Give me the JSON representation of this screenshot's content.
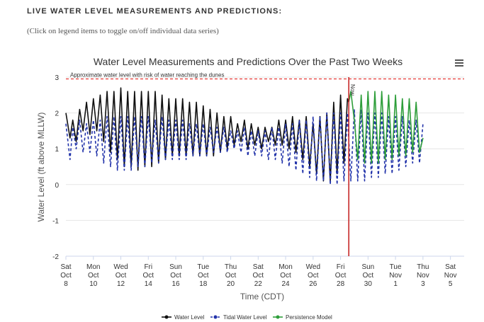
{
  "header": {
    "title": "LIVE WATER LEVEL MEASUREMENTS AND PREDICTIONS:",
    "subtitle": "(Click on legend items to toggle on/off individual data series)"
  },
  "menu_icon": "hamburger-menu-icon",
  "chart_data": {
    "type": "line",
    "title": "Water Level Measurements and Predictions Over the Past Two Weeks",
    "xlabel": "Time (CDT)",
    "ylabel": "Water Level (ft above MLLW)",
    "ylim": [
      -2,
      3
    ],
    "xlim": [
      0,
      29
    ],
    "yticks": [
      3,
      2,
      1,
      0,
      -1,
      -2
    ],
    "xticks": [
      {
        "x": 0,
        "day": "Sat",
        "date": "Oct",
        "num": "8"
      },
      {
        "x": 2,
        "day": "Mon",
        "date": "Oct",
        "num": "10"
      },
      {
        "x": 4,
        "day": "Wed",
        "date": "Oct",
        "num": "12"
      },
      {
        "x": 6,
        "day": "Fri",
        "date": "Oct",
        "num": "14"
      },
      {
        "x": 8,
        "day": "Sun",
        "date": "Oct",
        "num": "16"
      },
      {
        "x": 10,
        "day": "Tue",
        "date": "Oct",
        "num": "18"
      },
      {
        "x": 12,
        "day": "Thu",
        "date": "Oct",
        "num": "20"
      },
      {
        "x": 14,
        "day": "Sat",
        "date": "Oct",
        "num": "22"
      },
      {
        "x": 16,
        "day": "Mon",
        "date": "Oct",
        "num": "24"
      },
      {
        "x": 18,
        "day": "Wed",
        "date": "Oct",
        "num": "26"
      },
      {
        "x": 20,
        "day": "Fri",
        "date": "Oct",
        "num": "28"
      },
      {
        "x": 22,
        "day": "Sun",
        "date": "Oct",
        "num": "30"
      },
      {
        "x": 24,
        "day": "Tue",
        "date": "Nov",
        "num": "1"
      },
      {
        "x": 26,
        "day": "Thu",
        "date": "Nov",
        "num": "3"
      },
      {
        "x": 28,
        "day": "Sat",
        "date": "Nov",
        "num": "5"
      }
    ],
    "threshold": {
      "value": 2.95,
      "label": "Approximate water level with risk of water reaching the dunes",
      "color": "#e53935"
    },
    "now": {
      "x": 20.6,
      "label": "Now",
      "color": "#c62828"
    },
    "grid": true,
    "legend_position": "bottom-center",
    "series": [
      {
        "name": "Water Level",
        "color": "#111111",
        "dash": "none",
        "points": [
          [
            0.0,
            2.0
          ],
          [
            0.3,
            1.3
          ],
          [
            0.5,
            1.8
          ],
          [
            0.75,
            1.2
          ],
          [
            1.0,
            2.1
          ],
          [
            1.25,
            1.5
          ],
          [
            1.5,
            2.3
          ],
          [
            1.75,
            1.4
          ],
          [
            2.0,
            2.4
          ],
          [
            2.25,
            1.5
          ],
          [
            2.5,
            2.5
          ],
          [
            2.75,
            1.2
          ],
          [
            3.0,
            2.6
          ],
          [
            3.25,
            0.9
          ],
          [
            3.5,
            2.6
          ],
          [
            3.75,
            0.7
          ],
          [
            4.0,
            2.7
          ],
          [
            4.25,
            0.5
          ],
          [
            4.5,
            2.6
          ],
          [
            4.75,
            0.5
          ],
          [
            5.0,
            2.6
          ],
          [
            5.25,
            0.4
          ],
          [
            5.5,
            2.6
          ],
          [
            5.75,
            0.5
          ],
          [
            6.0,
            2.6
          ],
          [
            6.25,
            0.5
          ],
          [
            6.5,
            2.6
          ],
          [
            6.75,
            0.6
          ],
          [
            7.0,
            2.5
          ],
          [
            7.25,
            0.7
          ],
          [
            7.5,
            2.4
          ],
          [
            7.75,
            0.8
          ],
          [
            8.0,
            2.4
          ],
          [
            8.25,
            0.8
          ],
          [
            8.5,
            2.4
          ],
          [
            8.75,
            0.8
          ],
          [
            9.0,
            2.3
          ],
          [
            9.25,
            0.8
          ],
          [
            9.5,
            2.3
          ],
          [
            9.75,
            0.8
          ],
          [
            10.0,
            2.2
          ],
          [
            10.25,
            0.8
          ],
          [
            10.5,
            2.1
          ],
          [
            10.75,
            0.8
          ],
          [
            11.0,
            2.0
          ],
          [
            11.25,
            0.9
          ],
          [
            11.5,
            1.9
          ],
          [
            11.75,
            1.0
          ],
          [
            12.0,
            1.9
          ],
          [
            12.25,
            1.1
          ],
          [
            12.5,
            1.7
          ],
          [
            12.75,
            1.2
          ],
          [
            13.0,
            1.8
          ],
          [
            13.25,
            1.0
          ],
          [
            13.5,
            1.7
          ],
          [
            13.75,
            1.1
          ],
          [
            14.0,
            1.6
          ],
          [
            14.25,
            1.0
          ],
          [
            14.5,
            1.6
          ],
          [
            14.75,
            1.2
          ],
          [
            15.0,
            1.6
          ],
          [
            15.25,
            1.1
          ],
          [
            15.5,
            1.8
          ],
          [
            15.75,
            1.1
          ],
          [
            16.0,
            1.8
          ],
          [
            16.25,
            1.0
          ],
          [
            16.5,
            1.9
          ],
          [
            16.75,
            0.9
          ],
          [
            17.0,
            1.8
          ],
          [
            17.25,
            0.7
          ],
          [
            17.5,
            1.9
          ],
          [
            17.75,
            0.5
          ],
          [
            18.0,
            1.7
          ],
          [
            18.25,
            0.3
          ],
          [
            18.5,
            1.9
          ],
          [
            18.75,
            0.1
          ],
          [
            19.0,
            2.0
          ],
          [
            19.25,
            0.1
          ],
          [
            19.5,
            2.3
          ],
          [
            19.75,
            0.3
          ],
          [
            20.0,
            2.5
          ],
          [
            20.25,
            0.6
          ],
          [
            20.5,
            2.4
          ],
          [
            20.6,
            2.3
          ]
        ]
      },
      {
        "name": "Tidal Water Level",
        "color": "#2233aa",
        "dash": "4,3",
        "points": [
          [
            0.0,
            1.7
          ],
          [
            0.3,
            0.7
          ],
          [
            0.5,
            1.6
          ],
          [
            0.75,
            1.0
          ],
          [
            1.0,
            1.8
          ],
          [
            1.25,
            0.9
          ],
          [
            1.5,
            1.7
          ],
          [
            1.75,
            0.9
          ],
          [
            2.0,
            1.8
          ],
          [
            2.25,
            0.8
          ],
          [
            2.5,
            1.8
          ],
          [
            2.75,
            0.6
          ],
          [
            3.0,
            1.9
          ],
          [
            3.25,
            0.5
          ],
          [
            3.5,
            1.9
          ],
          [
            3.75,
            0.4
          ],
          [
            4.0,
            1.9
          ],
          [
            4.25,
            0.4
          ],
          [
            4.5,
            1.9
          ],
          [
            4.75,
            0.4
          ],
          [
            5.0,
            1.9
          ],
          [
            5.25,
            0.5
          ],
          [
            5.5,
            1.9
          ],
          [
            5.75,
            0.5
          ],
          [
            6.0,
            1.9
          ],
          [
            6.25,
            0.6
          ],
          [
            6.5,
            1.8
          ],
          [
            6.75,
            0.6
          ],
          [
            7.0,
            1.9
          ],
          [
            7.25,
            0.7
          ],
          [
            7.5,
            1.8
          ],
          [
            7.75,
            0.7
          ],
          [
            8.0,
            1.8
          ],
          [
            8.25,
            0.7
          ],
          [
            8.5,
            1.8
          ],
          [
            8.75,
            0.7
          ],
          [
            9.0,
            1.7
          ],
          [
            9.25,
            0.8
          ],
          [
            9.5,
            1.7
          ],
          [
            9.75,
            0.8
          ],
          [
            10.0,
            1.7
          ],
          [
            10.25,
            0.8
          ],
          [
            10.5,
            1.6
          ],
          [
            10.75,
            0.9
          ],
          [
            11.0,
            1.6
          ],
          [
            11.25,
            0.9
          ],
          [
            11.5,
            1.6
          ],
          [
            11.75,
            0.9
          ],
          [
            12.0,
            1.5
          ],
          [
            12.25,
            1.0
          ],
          [
            12.5,
            1.5
          ],
          [
            12.75,
            0.9
          ],
          [
            13.0,
            1.6
          ],
          [
            13.25,
            0.8
          ],
          [
            13.5,
            1.5
          ],
          [
            13.75,
            0.8
          ],
          [
            14.0,
            1.5
          ],
          [
            14.25,
            0.8
          ],
          [
            14.5,
            1.5
          ],
          [
            14.75,
            0.7
          ],
          [
            15.0,
            1.6
          ],
          [
            15.25,
            0.7
          ],
          [
            15.5,
            1.6
          ],
          [
            15.75,
            0.6
          ],
          [
            16.0,
            1.7
          ],
          [
            16.25,
            0.5
          ],
          [
            16.5,
            1.7
          ],
          [
            16.75,
            0.4
          ],
          [
            17.0,
            1.8
          ],
          [
            17.25,
            0.3
          ],
          [
            17.5,
            1.8
          ],
          [
            17.75,
            0.2
          ],
          [
            18.0,
            1.9
          ],
          [
            18.25,
            0.1
          ],
          [
            18.5,
            1.9
          ],
          [
            18.75,
            0.1
          ],
          [
            19.0,
            2.0
          ],
          [
            19.25,
            0.0
          ],
          [
            19.5,
            2.0
          ],
          [
            19.75,
            0.0
          ],
          [
            20.0,
            2.0
          ],
          [
            20.25,
            0.1
          ],
          [
            20.5,
            2.0
          ],
          [
            20.75,
            0.1
          ],
          [
            21.0,
            2.1
          ],
          [
            21.25,
            0.1
          ],
          [
            21.5,
            2.1
          ],
          [
            21.75,
            0.1
          ],
          [
            22.0,
            2.0
          ],
          [
            22.25,
            0.2
          ],
          [
            22.5,
            2.0
          ],
          [
            22.75,
            0.2
          ],
          [
            23.0,
            2.0
          ],
          [
            23.25,
            0.3
          ],
          [
            23.5,
            1.9
          ],
          [
            23.75,
            0.3
          ],
          [
            24.0,
            1.9
          ],
          [
            24.25,
            0.4
          ],
          [
            24.5,
            1.9
          ],
          [
            24.75,
            0.5
          ],
          [
            25.0,
            1.8
          ],
          [
            25.25,
            0.6
          ],
          [
            25.5,
            1.8
          ],
          [
            25.75,
            0.6
          ],
          [
            26.0,
            1.7
          ]
        ]
      },
      {
        "name": "Persistence Model",
        "color": "#2e9e3a",
        "dash": "none",
        "points": [
          [
            20.6,
            2.3
          ],
          [
            20.75,
            2.6
          ],
          [
            21.0,
            1.8
          ],
          [
            21.25,
            0.7
          ],
          [
            21.5,
            2.5
          ],
          [
            21.75,
            0.6
          ],
          [
            22.0,
            2.6
          ],
          [
            22.25,
            0.6
          ],
          [
            22.5,
            2.6
          ],
          [
            22.75,
            0.6
          ],
          [
            23.0,
            2.6
          ],
          [
            23.25,
            0.7
          ],
          [
            23.5,
            2.5
          ],
          [
            23.75,
            0.7
          ],
          [
            24.0,
            2.5
          ],
          [
            24.25,
            0.8
          ],
          [
            24.5,
            2.4
          ],
          [
            24.75,
            0.8
          ],
          [
            25.0,
            2.4
          ],
          [
            25.25,
            0.9
          ],
          [
            25.5,
            2.3
          ],
          [
            25.75,
            0.9
          ],
          [
            26.0,
            1.3
          ]
        ]
      }
    ]
  }
}
